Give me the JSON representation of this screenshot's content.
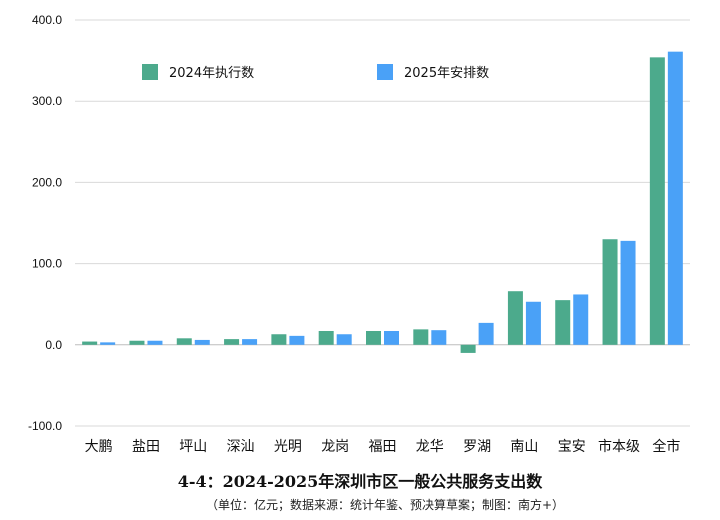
{
  "chart_data": {
    "type": "bar",
    "title": "4-4：2024-2025年深圳市区一般公共服务支出数",
    "subtitle": "（单位：亿元；数据来源：统计年鉴、预决算草案；制图：南方+）",
    "categories": [
      "大鹏",
      "盐田",
      "坪山",
      "深汕",
      "光明",
      "龙岗",
      "福田",
      "龙华",
      "罗湖",
      "南山",
      "宝安",
      "市本级",
      "全市"
    ],
    "series": [
      {
        "name": "2024年执行数",
        "color": "#4caa8c",
        "values": [
          4,
          5,
          8,
          7,
          13,
          17,
          17,
          19,
          -10,
          66,
          55,
          130,
          354
        ]
      },
      {
        "name": "2025年安排数",
        "color": "#4aa1f7",
        "values": [
          3,
          5,
          6,
          7,
          11,
          13,
          17,
          18,
          27,
          53,
          62,
          128,
          361
        ]
      }
    ],
    "ylim": [
      -100,
      400
    ],
    "yticks": [
      "-100.0",
      "0.0",
      "100.0",
      "200.0",
      "300.0",
      "400.0"
    ],
    "grid": true,
    "legend_position": "top"
  }
}
